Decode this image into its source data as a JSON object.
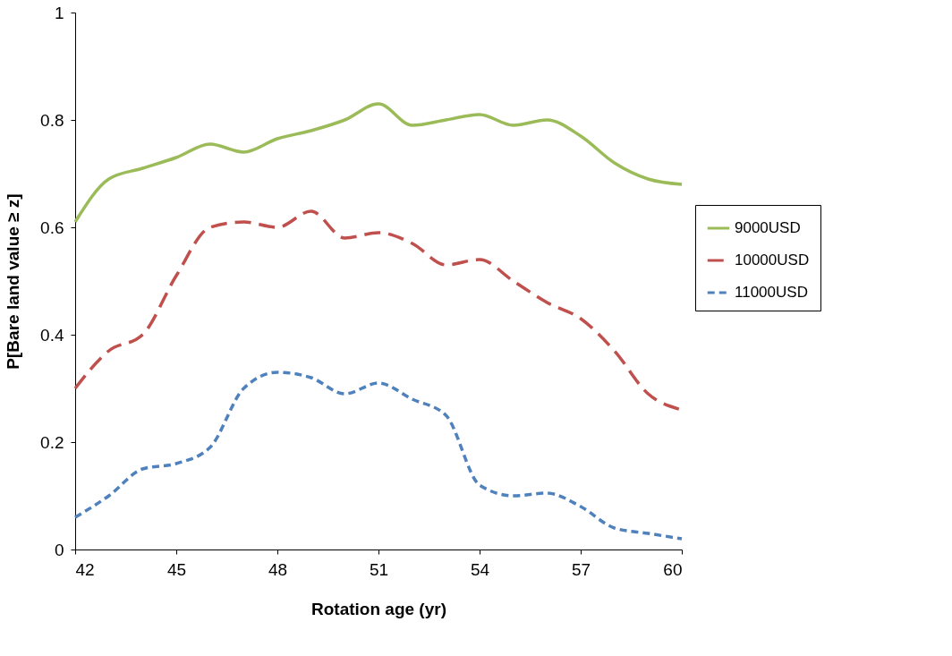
{
  "chart_data": {
    "type": "line",
    "xlabel": "Rotation age (yr)",
    "ylabel": "P[Bare land value ≥ z]",
    "x": [
      42,
      43,
      44,
      45,
      46,
      47,
      48,
      49,
      50,
      51,
      52,
      53,
      54,
      55,
      56,
      57,
      58,
      59,
      60
    ],
    "series": [
      {
        "name": "9000USD",
        "color": "#9bbb59",
        "line_style": "solid",
        "values": [
          0.61,
          0.69,
          0.71,
          0.73,
          0.755,
          0.74,
          0.765,
          0.78,
          0.8,
          0.83,
          0.79,
          0.8,
          0.81,
          0.79,
          0.8,
          0.77,
          0.72,
          0.69,
          0.68
        ]
      },
      {
        "name": "10000USD",
        "color": "#c0504d",
        "line_style": "dashed",
        "values": [
          0.3,
          0.37,
          0.4,
          0.51,
          0.6,
          0.61,
          0.6,
          0.63,
          0.58,
          0.59,
          0.57,
          0.53,
          0.54,
          0.5,
          0.46,
          0.43,
          0.37,
          0.29,
          0.26
        ]
      },
      {
        "name": "11000USD",
        "color": "#4f81bd",
        "line_style": "dotted",
        "values": [
          0.06,
          0.1,
          0.15,
          0.16,
          0.19,
          0.3,
          0.33,
          0.32,
          0.29,
          0.31,
          0.28,
          0.25,
          0.12,
          0.1,
          0.105,
          0.08,
          0.04,
          0.03,
          0.02
        ]
      }
    ],
    "xlim": [
      42,
      60
    ],
    "xticks": [
      42,
      45,
      48,
      51,
      54,
      57,
      60
    ],
    "ylim": [
      0,
      1
    ],
    "yticks": [
      0,
      0.2,
      0.4,
      0.6,
      0.8,
      1
    ],
    "grid": false,
    "legend": "right",
    "marker": "none"
  }
}
